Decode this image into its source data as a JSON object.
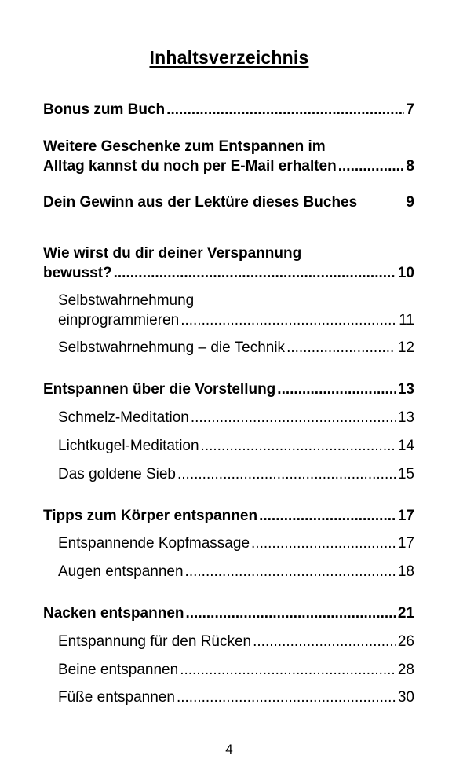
{
  "title": "Inhaltsverzeichnis",
  "entries": [
    {
      "lead": "",
      "label": "Bonus zum Buch",
      "page": "7"
    },
    {
      "lead": "Weitere Geschenke zum Entspannen im",
      "label": "Alltag kannst du noch per E-Mail erhalten",
      "page": "8"
    },
    {
      "lead": "",
      "label": "Dein Gewinn aus der Lektüre dieses Buches",
      "page": "9"
    },
    {
      "lead": "Wie wirst du dir deiner Verspannung",
      "label": "bewusst?",
      "page": "10"
    },
    {
      "lead": "Selbstwahrnehmung",
      "label": "einprogrammieren",
      "page": "11"
    },
    {
      "lead": "",
      "label": "Selbstwahrnehmung – die Technik",
      "page": "12"
    },
    {
      "lead": "",
      "label": "Entspannen über die Vorstellung",
      "page": "13"
    },
    {
      "lead": "",
      "label": "Schmelz-Meditation",
      "page": "13"
    },
    {
      "lead": "",
      "label": "Lichtkugel-Meditation",
      "page": "14"
    },
    {
      "lead": "",
      "label": "Das goldene Sieb",
      "page": "15"
    },
    {
      "lead": "",
      "label": "Tipps zum Körper entspannen",
      "page": "17"
    },
    {
      "lead": "",
      "label": "Entspannende Kopfmassage",
      "page": "17"
    },
    {
      "lead": "",
      "label": "Augen entspannen",
      "page": "18"
    },
    {
      "lead": "",
      "label": "Nacken entspannen",
      "page": "21"
    },
    {
      "lead": "",
      "label": "Entspannung für den Rücken",
      "page": "26"
    },
    {
      "lead": "",
      "label": "Beine entspannen",
      "page": "28"
    },
    {
      "lead": "",
      "label": "Füße entspannen",
      "page": "30"
    }
  ],
  "page_number": "4"
}
